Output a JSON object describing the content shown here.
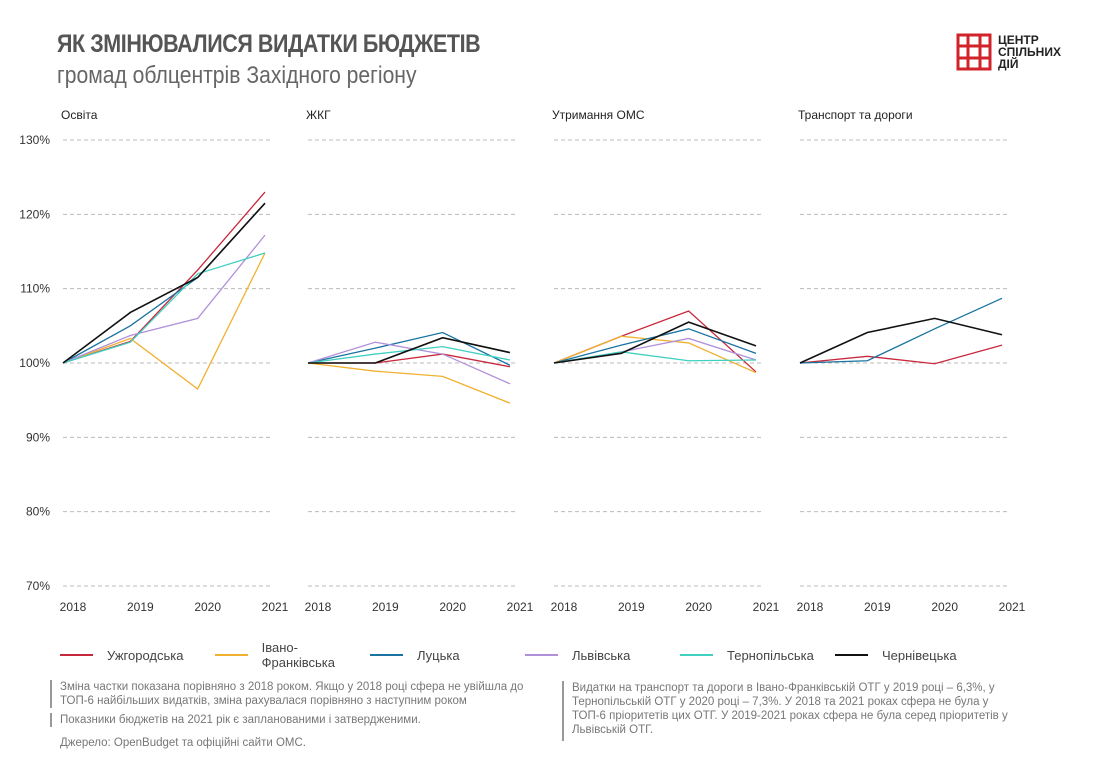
{
  "header": {
    "title": "ЯК ЗМІНЮВАЛИСЯ ВИДАТКИ БЮДЖЕТІВ",
    "subtitle": "громад облцентрів Західного регіону",
    "logo": {
      "lines": [
        "ЦЕНТР",
        "СПІЛЬНИХ",
        "ДІЙ"
      ],
      "color": "#d2232a"
    }
  },
  "colors": {
    "Ужгородська": "#c8283c",
    "Івано-Франківська": "#f0b030",
    "Луцька": "#1a73a0",
    "Львівська": "#b090d8",
    "Тернопільська": "#40d0c0",
    "Чернівецька": "#111111"
  },
  "chart_data": [
    {
      "type": "line",
      "title": "Освіта",
      "categories": [
        "2018",
        "2019",
        "2020",
        "2021"
      ],
      "ylim": [
        70,
        130
      ],
      "yticks": [
        "130%",
        "120%",
        "110%",
        "100%",
        "90%",
        "80%",
        "70%"
      ],
      "grid": true,
      "series": [
        {
          "name": "Ужгородська",
          "values": [
            100,
            102.9,
            112.5,
            123
          ]
        },
        {
          "name": "Івано-Франківська",
          "values": [
            100,
            103.3,
            96.5,
            114.8
          ]
        },
        {
          "name": "Луцька",
          "values": [
            100,
            105,
            111.5,
            121.5
          ]
        },
        {
          "name": "Львівська",
          "values": [
            100,
            103.7,
            106,
            117.2
          ]
        },
        {
          "name": "Тернопільська",
          "values": [
            100,
            102.8,
            112,
            114.8
          ]
        },
        {
          "name": "Чернівецька",
          "values": [
            100,
            106.8,
            111.5,
            121.5
          ]
        }
      ]
    },
    {
      "type": "line",
      "title": "ЖКГ",
      "categories": [
        "2018",
        "2019",
        "2020",
        "2021"
      ],
      "ylim": [
        70,
        130
      ],
      "grid": true,
      "series": [
        {
          "name": "Ужгородська",
          "values": [
            100,
            100,
            101.2,
            99.5
          ]
        },
        {
          "name": "Івано-Франківська",
          "values": [
            100,
            98.9,
            98.2,
            94.6
          ]
        },
        {
          "name": "Луцька",
          "values": [
            100,
            102,
            104.1,
            99.7
          ]
        },
        {
          "name": "Львівська",
          "values": [
            100,
            102.8,
            101.2,
            97.2
          ]
        },
        {
          "name": "Тернопільська",
          "values": [
            100,
            101.2,
            102.2,
            100.4
          ]
        },
        {
          "name": "Чернівецька",
          "values": [
            100,
            100,
            103.4,
            101.4
          ]
        }
      ]
    },
    {
      "type": "line",
      "title": "Утримання ОМС",
      "categories": [
        "2018",
        "2019",
        "2020",
        "2021"
      ],
      "ylim": [
        70,
        130
      ],
      "grid": true,
      "series": [
        {
          "name": "Ужгородська",
          "values": [
            100,
            103.6,
            107,
            98.8
          ]
        },
        {
          "name": "Івано-Франківська",
          "values": [
            100,
            103.6,
            102.7,
            98.7
          ]
        },
        {
          "name": "Луцька",
          "values": [
            100,
            102.4,
            104.6,
            101.3
          ]
        },
        {
          "name": "Львівська",
          "values": [
            100,
            101.5,
            103.3,
            100.4
          ]
        },
        {
          "name": "Тернопільська",
          "values": [
            100,
            101.5,
            100.3,
            100.4
          ]
        },
        {
          "name": "Чернівецька",
          "values": [
            100,
            101.3,
            105.5,
            102.3
          ]
        }
      ]
    },
    {
      "type": "line",
      "title": "Транспорт та дороги",
      "categories": [
        "2018",
        "2019",
        "2020",
        "2021"
      ],
      "ylim": [
        70,
        130
      ],
      "grid": true,
      "series": [
        {
          "name": "Ужгородська",
          "values": [
            100,
            100.9,
            99.9,
            102.4
          ]
        },
        {
          "name": "Луцька",
          "values": [
            100,
            100.3,
            104.6,
            108.7
          ]
        },
        {
          "name": "Чернівецька",
          "values": [
            100,
            104.1,
            106,
            103.8
          ]
        }
      ]
    }
  ],
  "legend": [
    "Ужгородська",
    "Івано-Франківська",
    "Луцька",
    "Львівська",
    "Тернопільська",
    "Чернівецька"
  ],
  "notes": {
    "left1": "Зміна частки показана порівняно з 2018 роком. Якщо у 2018 році сфера не увійшла до ТОП-6 найбільших видатків, зміна рахувалася порівняно з наступним роком",
    "left2": "Показники бюджетів на 2021 рік є запланованими і затвердженими.",
    "source": "Джерело: OpenBudget та офіційні сайти ОМС.",
    "right": "Видатки на транспорт та дороги в Івано-Франківській ОТГ у 2019 році – 6,3%, у Тернопільській ОТГ у 2020 році – 7,3%. У 2018 та 2021 роках сфера не була у ТОП-6 пріоритетів цих ОТГ. У 2019-2021 роках сфера не була серед пріоритетів у Львівській ОТГ."
  }
}
